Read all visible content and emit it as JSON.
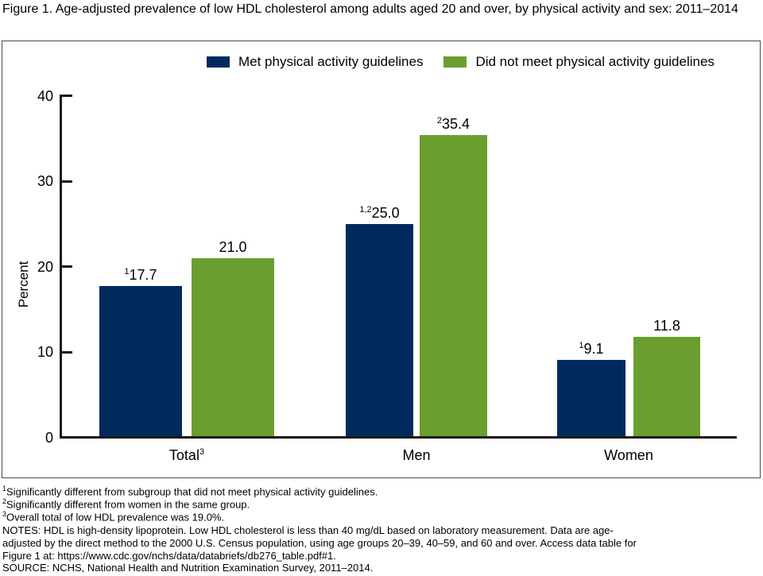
{
  "chart_data": {
    "type": "bar",
    "title": "Figure 1. Age-adjusted prevalence of low HDL cholesterol among adults aged 20 and over, by physical activity and sex: 2011–2014",
    "ylabel": "Percent",
    "ylim": [
      0,
      40
    ],
    "yticks": [
      0,
      10,
      20,
      30,
      40
    ],
    "grid": false,
    "legend_position": "top-center",
    "categories": [
      "Total",
      "Men",
      "Women"
    ],
    "category_footnote_marks": [
      "3",
      "",
      ""
    ],
    "series": [
      {
        "name": "Met physical activity guidelines",
        "color": "#002a5e",
        "values": [
          17.7,
          25.0,
          9.1
        ],
        "value_labels": [
          "17.7",
          "25.0",
          "9.1"
        ],
        "value_footnote_marks": [
          "1",
          "1,2",
          "1"
        ]
      },
      {
        "name": "Did not meet physical activity guidelines",
        "color": "#6a9e2e",
        "values": [
          21.0,
          35.4,
          11.8
        ],
        "value_labels": [
          "21.0",
          "35.4",
          "11.8"
        ],
        "value_footnote_marks": [
          "",
          "2",
          ""
        ]
      }
    ]
  },
  "footnotes": [
    {
      "sup": "1",
      "text": "Significantly different from subgroup that did not meet physical activity guidelines."
    },
    {
      "sup": "2",
      "text": "Significantly different from women in the same group."
    },
    {
      "sup": "3",
      "text": "Overall total of low HDL prevalence was 19.0%."
    },
    {
      "sup": "",
      "text": "NOTES: HDL is high-density lipoprotein. Low HDL cholesterol is less than 40 mg/dL based on laboratory measurement. Data are age-adjusted by the direct method to the 2000 U.S. Census population, using age groups 20–39, 40–59, and 60 and over. Access data table for Figure 1 at: https://www.cdc.gov/nchs/data/databriefs/db276_table.pdf#1."
    },
    {
      "sup": "",
      "text": "SOURCE: NCHS, National Health and Nutrition Examination Survey, 2011–2014."
    }
  ]
}
